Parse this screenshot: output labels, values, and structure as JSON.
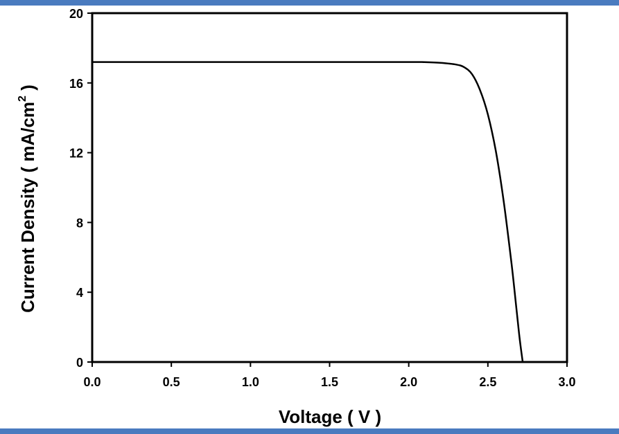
{
  "colors": {
    "band": "#4a7bbf",
    "frame": "#000000",
    "curve": "#000000",
    "background": "#ffffff"
  },
  "chart_data": {
    "type": "line",
    "title": "",
    "xlabel": "Voltage ( V )",
    "ylabel_main": "Current Density ( mA/cm",
    "ylabel_sup": "2",
    "ylabel_end": " )",
    "xlim": [
      0.0,
      3.0
    ],
    "ylim": [
      0,
      20
    ],
    "xticks": [
      "0.0",
      "0.5",
      "1.0",
      "1.5",
      "2.0",
      "2.5",
      "3.0"
    ],
    "yticks": [
      "0",
      "4",
      "8",
      "12",
      "16",
      "20"
    ],
    "grid": false,
    "legend": "none",
    "series": [
      {
        "x": [
          0.0,
          0.5,
          1.0,
          1.5,
          2.0,
          2.1,
          2.2,
          2.3,
          2.35,
          2.4,
          2.45,
          2.5,
          2.55,
          2.6,
          2.65,
          2.68,
          2.7,
          2.72
        ],
        "y": [
          17.2,
          17.2,
          17.2,
          17.2,
          17.2,
          17.19,
          17.15,
          17.05,
          16.9,
          16.5,
          15.6,
          14.2,
          12.1,
          9.2,
          5.6,
          3.1,
          1.4,
          0.0
        ]
      }
    ]
  }
}
